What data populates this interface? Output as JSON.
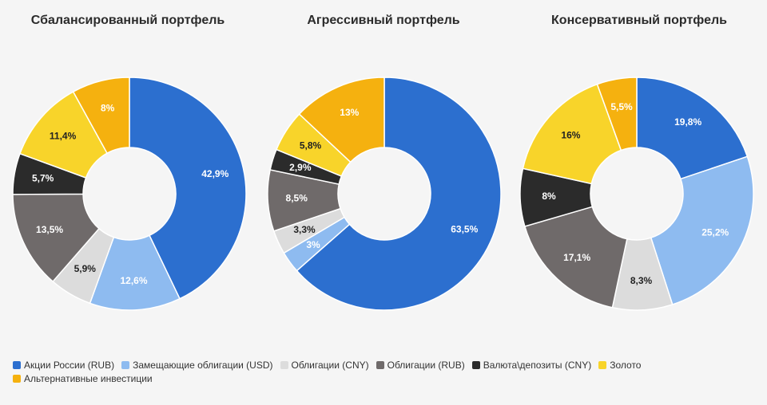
{
  "chart_data": {
    "type": "donut",
    "categories": [
      "Акции России (RUB)",
      "Замещающие облигации (USD)",
      "Облигации (CNY)",
      "Облигации (RUB)",
      "Валюта\\депозиты (CNY)",
      "Золото",
      "Альтернативные инвестиции"
    ],
    "colors": [
      "#2c6fcf",
      "#8ebbf0",
      "#dcdcdc",
      "#6f6a6a",
      "#2b2b2b",
      "#f8d42a",
      "#f5b10f"
    ],
    "label_colors": [
      "#ffffff",
      "#ffffff",
      "#222222",
      "#ffffff",
      "#ffffff",
      "#222222",
      "#ffffff"
    ],
    "charts": [
      {
        "title": "Сбалансированный портфель",
        "values": [
          42.9,
          12.6,
          5.9,
          13.5,
          5.7,
          11.4,
          8
        ],
        "labels": [
          "42,9%",
          "12,6%",
          "5,9%",
          "13,5%",
          "5,7%",
          "11,4%",
          "8%"
        ]
      },
      {
        "title": "Агрессивный портфель",
        "values": [
          63.5,
          3,
          3.3,
          8.5,
          2.9,
          5.8,
          13
        ],
        "labels": [
          "63,5%",
          "3%",
          "3,3%",
          "8,5%",
          "2,9%",
          "5,8%",
          "13%"
        ]
      },
      {
        "title": "Консервативный портфель",
        "values": [
          19.8,
          25.2,
          8.3,
          17.1,
          8,
          16,
          5.5
        ],
        "labels": [
          "19,8%",
          "25,2%",
          "8,3%",
          "17,1%",
          "8%",
          "16%",
          "5,5%"
        ]
      }
    ]
  }
}
